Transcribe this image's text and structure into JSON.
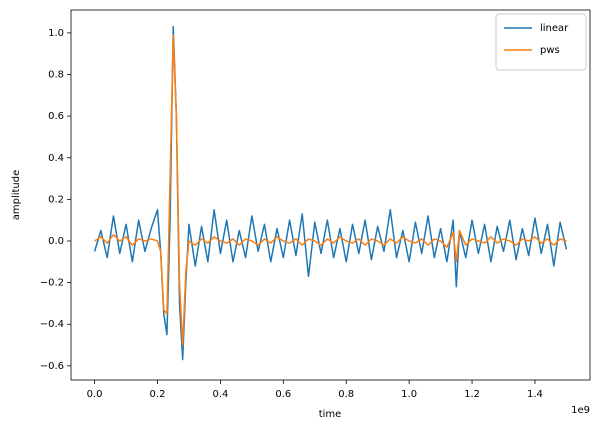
{
  "chart_data": {
    "type": "line",
    "xlabel": "time",
    "ylabel": "amplitude",
    "x_offset_label": "1e9",
    "x": [
      0.0,
      0.02,
      0.04,
      0.06,
      0.08,
      0.1,
      0.12,
      0.14,
      0.16,
      0.18,
      0.2,
      0.21,
      0.22,
      0.23,
      0.24,
      0.25,
      0.26,
      0.27,
      0.28,
      0.29,
      0.3,
      0.32,
      0.34,
      0.36,
      0.38,
      0.4,
      0.42,
      0.44,
      0.46,
      0.48,
      0.5,
      0.52,
      0.54,
      0.56,
      0.58,
      0.6,
      0.62,
      0.64,
      0.66,
      0.68,
      0.7,
      0.72,
      0.74,
      0.76,
      0.78,
      0.8,
      0.82,
      0.84,
      0.86,
      0.88,
      0.9,
      0.92,
      0.94,
      0.96,
      0.98,
      1.0,
      1.02,
      1.04,
      1.06,
      1.08,
      1.1,
      1.12,
      1.14,
      1.15,
      1.16,
      1.18,
      1.2,
      1.22,
      1.24,
      1.26,
      1.28,
      1.3,
      1.32,
      1.34,
      1.36,
      1.38,
      1.4,
      1.42,
      1.44,
      1.46,
      1.48,
      1.5
    ],
    "series": [
      {
        "name": "linear",
        "color": "#1f77b4",
        "values": [
          -0.05,
          0.05,
          -0.08,
          0.12,
          -0.06,
          0.08,
          -0.1,
          0.1,
          -0.05,
          0.06,
          0.15,
          -0.05,
          -0.35,
          -0.45,
          0.1,
          1.03,
          0.6,
          -0.3,
          -0.57,
          -0.2,
          0.08,
          -0.12,
          0.07,
          -0.1,
          0.15,
          -0.06,
          0.1,
          -0.1,
          0.05,
          -0.08,
          0.12,
          -0.05,
          0.08,
          -0.1,
          0.06,
          -0.08,
          0.1,
          -0.07,
          0.13,
          -0.17,
          0.09,
          -0.06,
          0.1,
          -0.08,
          0.06,
          -0.1,
          0.08,
          -0.06,
          0.1,
          -0.09,
          0.07,
          -0.05,
          0.15,
          -0.08,
          0.05,
          -0.1,
          0.09,
          -0.06,
          0.12,
          -0.08,
          0.06,
          -0.1,
          0.1,
          -0.22,
          0.05,
          -0.08,
          0.1,
          -0.06,
          0.08,
          -0.1,
          0.07,
          -0.05,
          0.1,
          -0.09,
          0.06,
          -0.07,
          0.11,
          -0.06,
          0.08,
          -0.12,
          0.09,
          -0.04
        ]
      },
      {
        "name": "pws",
        "color": "#ff7f0e",
        "values": [
          0,
          0.02,
          -0.01,
          0.03,
          0,
          0.02,
          -0.02,
          0.01,
          0,
          0.01,
          0,
          -0.05,
          -0.33,
          -0.35,
          0.3,
          0.99,
          0.6,
          -0.2,
          -0.5,
          -0.15,
          0,
          -0.02,
          0.01,
          -0.01,
          0.02,
          0,
          -0.01,
          0.01,
          -0.02,
          0.01,
          0,
          -0.02,
          0.01,
          -0.01,
          0.02,
          0,
          -0.01,
          0.01,
          -0.02,
          0.01,
          0,
          -0.02,
          0.01,
          -0.01,
          0.02,
          0,
          -0.01,
          0.01,
          -0.02,
          0.01,
          0,
          -0.02,
          0.01,
          -0.01,
          0.02,
          0,
          -0.01,
          0.01,
          -0.02,
          0.01,
          0,
          -0.03,
          0.04,
          -0.1,
          0.05,
          -0.02,
          0.01,
          0,
          -0.01,
          0.02,
          -0.01,
          0.01,
          0,
          -0.02,
          0.01,
          0,
          0.02,
          -0.01,
          0.01,
          -0.02,
          0.01,
          0
        ]
      }
    ],
    "xlim": [
      -0.075,
      1.575
    ],
    "xticks": [
      {
        "value": 0,
        "label": "0.0"
      },
      0.2,
      0.4,
      0.6,
      0.8,
      {
        "value": 1,
        "label": "1.0"
      },
      1.2,
      1.4
    ],
    "ylim": [
      -0.668,
      1.11
    ],
    "yticks": [
      {
        "value": -0.6,
        "label": "−0.6"
      },
      {
        "value": -0.4,
        "label": "−0.4"
      },
      {
        "value": -0.2,
        "label": "−0.2"
      },
      {
        "value": 0,
        "label": "0.0"
      },
      0.2,
      0.4,
      0.6,
      0.8,
      {
        "value": 1,
        "label": "1.0"
      }
    ],
    "legend": "upper right",
    "grid": false
  }
}
